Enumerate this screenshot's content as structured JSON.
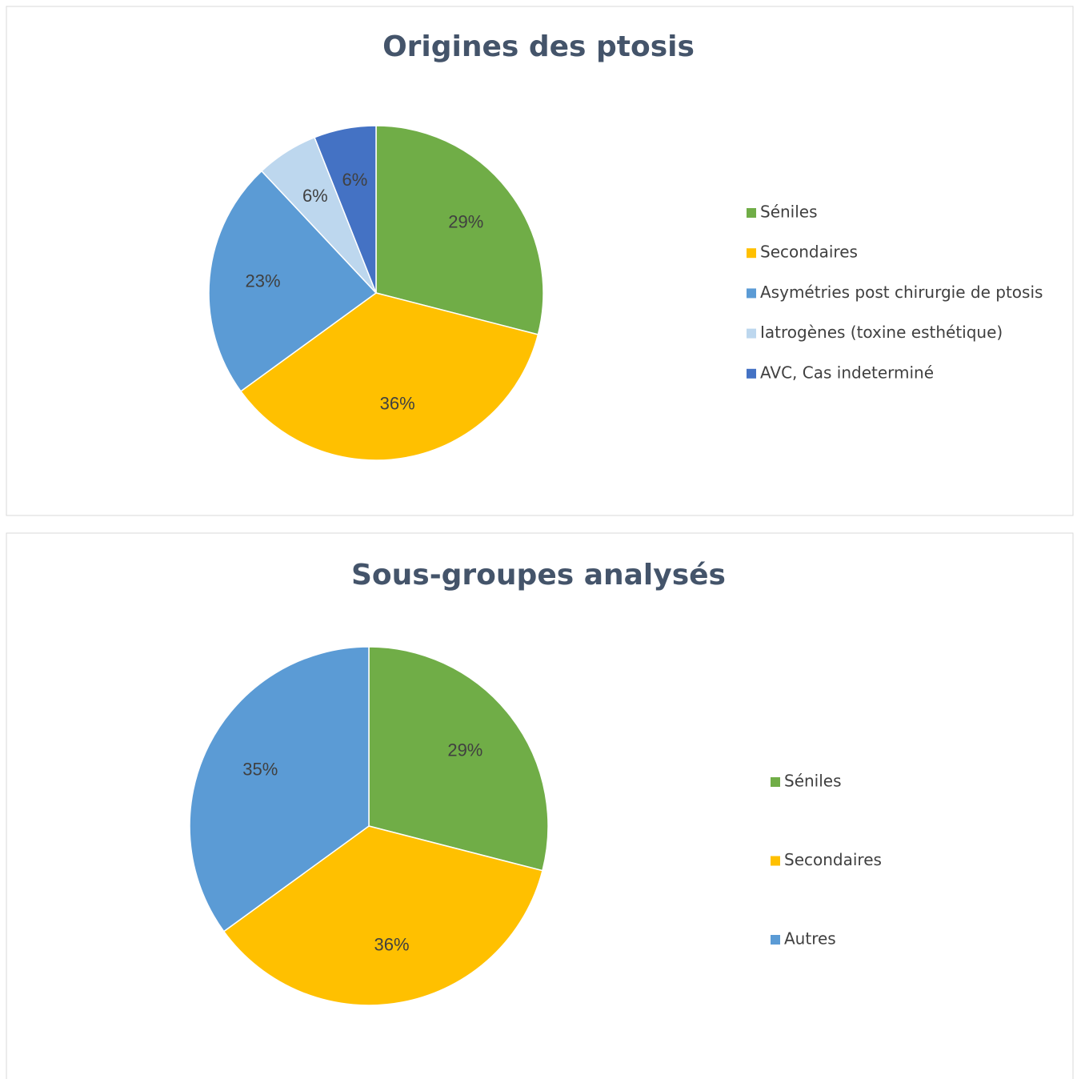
{
  "chart_data": [
    {
      "type": "pie",
      "title": "Origines des ptosis",
      "categories": [
        "Séniles",
        "Secondaires",
        "Asymétries post chirurgie de ptosis",
        "Iatrogènes (toxine esthétique)",
        "AVC, Cas indeterminé"
      ],
      "values": [
        29,
        36,
        23,
        6,
        6
      ],
      "value_labels": [
        "29%",
        "36%",
        "23%",
        "6%",
        "6%"
      ],
      "colors": [
        "#70ad47",
        "#ffc000",
        "#5b9bd5",
        "#bdd7ee",
        "#4472c4"
      ],
      "legend": "right"
    },
    {
      "type": "pie",
      "title": "Sous-groupes analysés",
      "categories": [
        "Séniles",
        "Secondaires",
        "Autres"
      ],
      "values": [
        29,
        36,
        35
      ],
      "value_labels": [
        "29%",
        "36%",
        "35%"
      ],
      "colors": [
        "#70ad47",
        "#ffc000",
        "#5b9bd5"
      ],
      "legend": "right"
    }
  ]
}
